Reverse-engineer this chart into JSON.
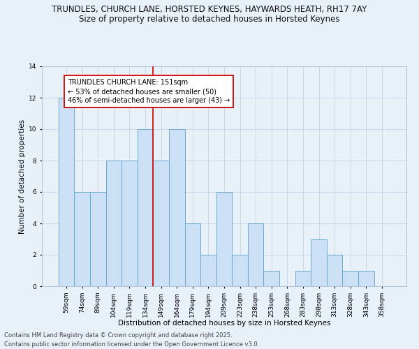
{
  "title": "TRUNDLES, CHURCH LANE, HORSTED KEYNES, HAYWARDS HEATH, RH17 7AY",
  "subtitle": "Size of property relative to detached houses in Horsted Keynes",
  "xlabel": "Distribution of detached houses by size in Horsted Keynes",
  "ylabel": "Number of detached properties",
  "bins": [
    "59sqm",
    "74sqm",
    "89sqm",
    "104sqm",
    "119sqm",
    "134sqm",
    "149sqm",
    "164sqm",
    "179sqm",
    "194sqm",
    "209sqm",
    "223sqm",
    "238sqm",
    "253sqm",
    "268sqm",
    "283sqm",
    "298sqm",
    "313sqm",
    "328sqm",
    "343sqm",
    "358sqm"
  ],
  "values": [
    12,
    6,
    6,
    8,
    8,
    10,
    8,
    10,
    4,
    2,
    6,
    2,
    4,
    1,
    0,
    1,
    3,
    2,
    1,
    1,
    0
  ],
  "bar_color": "#cce0f5",
  "bar_edge_color": "#6aaad4",
  "grid_color": "#c8d8e8",
  "vline_color": "#cc0000",
  "annotation_title": "TRUNDLES CHURCH LANE: 151sqm",
  "annotation_line1": "← 53% of detached houses are smaller (50)",
  "annotation_line2": "46% of semi-detached houses are larger (43) →",
  "annotation_box_color": "#cc0000",
  "ylim": [
    0,
    14
  ],
  "yticks": [
    0,
    2,
    4,
    6,
    8,
    10,
    12,
    14
  ],
  "footer_line1": "Contains HM Land Registry data © Crown copyright and database right 2025.",
  "footer_line2": "Contains public sector information licensed under the Open Government Licence v3.0.",
  "bg_color": "#e8f0f8",
  "plot_bg_color": "#e8f0f8",
  "title_fontsize": 8.5,
  "subtitle_fontsize": 8.5,
  "axis_label_fontsize": 7.5,
  "tick_fontsize": 6.5,
  "annotation_fontsize": 7,
  "footer_fontsize": 6
}
